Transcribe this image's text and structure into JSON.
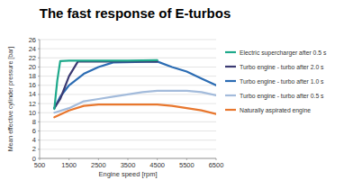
{
  "chart_data": {
    "type": "line",
    "title": "The fast response of E-turbos",
    "x_label": "Engine speed [rpm]",
    "y_label": "Mean effective cylinder pressure [bar]",
    "xlim": [
      500,
      6500
    ],
    "xticks": [
      500,
      1500,
      2500,
      3500,
      4500,
      5500,
      6500
    ],
    "ylim": [
      0,
      26
    ],
    "yticks": [
      0,
      2,
      4,
      6,
      8,
      10,
      12,
      14,
      16,
      18,
      20,
      22,
      24,
      26
    ],
    "grid": true,
    "legend": "right",
    "series": [
      {
        "name": "Electric supercharger after 0.5 s",
        "color": "#1ea98b",
        "x": [
          1000,
          1100,
          1200,
          1500,
          2500,
          3500,
          4500
        ],
        "values": [
          10.8,
          17,
          21.3,
          21.4,
          21.4,
          21.4,
          21.5
        ]
      },
      {
        "name": "Turbo engine - turbo after 2.0 s",
        "color": "#3b3a72",
        "x": [
          1000,
          1200,
          1500,
          1800,
          2000,
          3000,
          4500
        ],
        "values": [
          11,
          13,
          18,
          21.2,
          21.2,
          21.2,
          21.2
        ]
      },
      {
        "name": "Turbo engine - turbo after 1.0 s",
        "color": "#2b6cb3",
        "x": [
          1000,
          1200,
          1500,
          2000,
          2500,
          3000,
          4500,
          5000,
          5500,
          6000,
          6500
        ],
        "values": [
          11,
          13.5,
          16,
          18.5,
          20,
          21,
          21.2,
          20,
          19,
          17.5,
          16
        ]
      },
      {
        "name": "Turbo engine - turbo after 0.5 s",
        "color": "#a3bbdb",
        "x": [
          1000,
          1500,
          2000,
          2500,
          3000,
          3500,
          4000,
          4500,
          5000,
          5500,
          6000,
          6500
        ],
        "values": [
          10,
          11,
          12.5,
          13,
          13.5,
          14,
          14.5,
          14.8,
          14.8,
          14.8,
          14.5,
          13.8
        ]
      },
      {
        "name": "Naturally aspirated engine",
        "color": "#e8772e",
        "x": [
          1000,
          1500,
          2000,
          2500,
          3000,
          4500,
          5000,
          5500,
          6000,
          6500
        ],
        "values": [
          9,
          10.5,
          11.5,
          11.8,
          11.8,
          11.8,
          11.5,
          11,
          10.5,
          9.7
        ]
      }
    ]
  }
}
